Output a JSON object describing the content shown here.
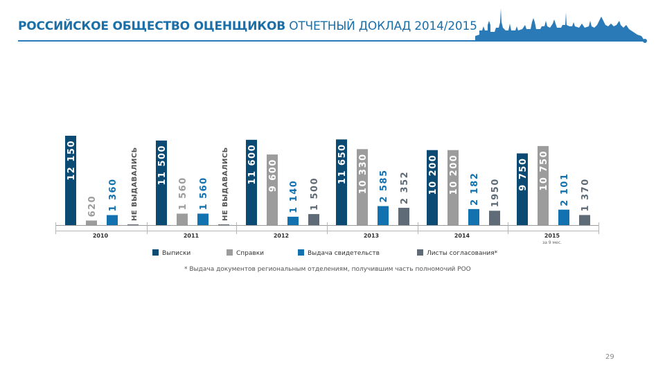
{
  "header": {
    "org_name": "РОССИЙСКОЕ ОБЩЕСТВО ОЦЕНЩИКОВ",
    "report_title": "ОТЧЕТНЫЙ ДОКЛАД 2014/2015"
  },
  "page_number": "29",
  "chart_data": {
    "type": "bar",
    "categories": [
      "2010",
      "2011",
      "2012",
      "2013",
      "2014",
      "2015"
    ],
    "category_notes": [
      "",
      "",
      "",
      "",
      "",
      "за 9 мес."
    ],
    "series": [
      {
        "name": "Выписки",
        "color": "#0b4a72",
        "values": [
          12150,
          11500,
          11600,
          11650,
          10200,
          9750
        ],
        "labels": [
          "12 150",
          "11 500",
          "11 600",
          "11 650",
          "10 200",
          "9 750"
        ]
      },
      {
        "name": "Справки",
        "color": "#9c9c9c",
        "values": [
          620,
          1560,
          9600,
          10330,
          10200,
          10750
        ],
        "labels": [
          "620",
          "1 560",
          "9 600",
          "10 330",
          "10 200",
          "10 750"
        ]
      },
      {
        "name": "Выдача свидетельств",
        "color": "#1272b0",
        "values": [
          1360,
          1560,
          1140,
          2585,
          2182,
          2101
        ],
        "labels": [
          "1 360",
          "1 560",
          "1 140",
          "2 585",
          "2 182",
          "2 101"
        ]
      },
      {
        "name": "Листы согласования*",
        "color": "#5f6b76",
        "values": [
          null,
          null,
          1500,
          2352,
          1950,
          1370
        ],
        "labels": [
          "НЕ ВЫДАВАЛИСЬ",
          "НЕ ВЫДАВАЛИСЬ",
          "1 500",
          "2 352",
          "1950",
          "1 370"
        ]
      }
    ],
    "footnote": "* Выдача документов региональным отделениям, получившим часть полномочий РОО",
    "ylim": [
      0,
      12150
    ],
    "grid": false,
    "legend_position": "bottom"
  }
}
